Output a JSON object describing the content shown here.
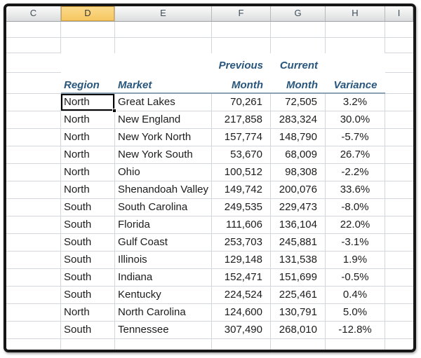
{
  "sheet": {
    "column_headers": [
      "C",
      "D",
      "E",
      "F",
      "G",
      "H",
      "I"
    ],
    "selected_column": "D",
    "colors": {
      "selected_column_fill_top": "#fbdb8d",
      "selected_column_fill_bottom": "#f6c65f",
      "selected_column_border": "#d9a43e",
      "header_text_blue": "#28567d",
      "grid_line": "#d3d6db",
      "header_underline": "#8ba0b3",
      "selection_border": "#000000"
    }
  },
  "table": {
    "headers": {
      "previous_line1": "Previous",
      "current_line1": "Current",
      "region": "Region",
      "market": "Market",
      "previous_line2": "Month",
      "current_line2": "Month",
      "variance": "Variance"
    },
    "rows": [
      {
        "region": "North",
        "market": "Great Lakes",
        "previous": "70,261",
        "current": "72,505",
        "variance": "3.2%"
      },
      {
        "region": "North",
        "market": "New England",
        "previous": "217,858",
        "current": "283,324",
        "variance": "30.0%"
      },
      {
        "region": "North",
        "market": "New York North",
        "previous": "157,774",
        "current": "148,790",
        "variance": "-5.7%"
      },
      {
        "region": "North",
        "market": "New York South",
        "previous": "53,670",
        "current": "68,009",
        "variance": "26.7%"
      },
      {
        "region": "North",
        "market": "Ohio",
        "previous": "100,512",
        "current": "98,308",
        "variance": "-2.2%"
      },
      {
        "region": "North",
        "market": "Shenandoah Valley",
        "previous": "149,742",
        "current": "200,076",
        "variance": "33.6%"
      },
      {
        "region": "South",
        "market": "South Carolina",
        "previous": "249,535",
        "current": "229,473",
        "variance": "-8.0%"
      },
      {
        "region": "South",
        "market": "Florida",
        "previous": "111,606",
        "current": "136,104",
        "variance": "22.0%"
      },
      {
        "region": "South",
        "market": "Gulf Coast",
        "previous": "253,703",
        "current": "245,881",
        "variance": "-3.1%"
      },
      {
        "region": "South",
        "market": "Illinois",
        "previous": "129,148",
        "current": "131,538",
        "variance": "1.9%"
      },
      {
        "region": "South",
        "market": "Indiana",
        "previous": "152,471",
        "current": "151,699",
        "variance": "-0.5%"
      },
      {
        "region": "South",
        "market": "Kentucky",
        "previous": "224,524",
        "current": "225,461",
        "variance": "0.4%"
      },
      {
        "region": "North",
        "market": "North Carolina",
        "previous": "124,600",
        "current": "130,791",
        "variance": "5.0%"
      },
      {
        "region": "South",
        "market": "Tennessee",
        "previous": "307,490",
        "current": "268,010",
        "variance": "-12.8%"
      }
    ]
  }
}
